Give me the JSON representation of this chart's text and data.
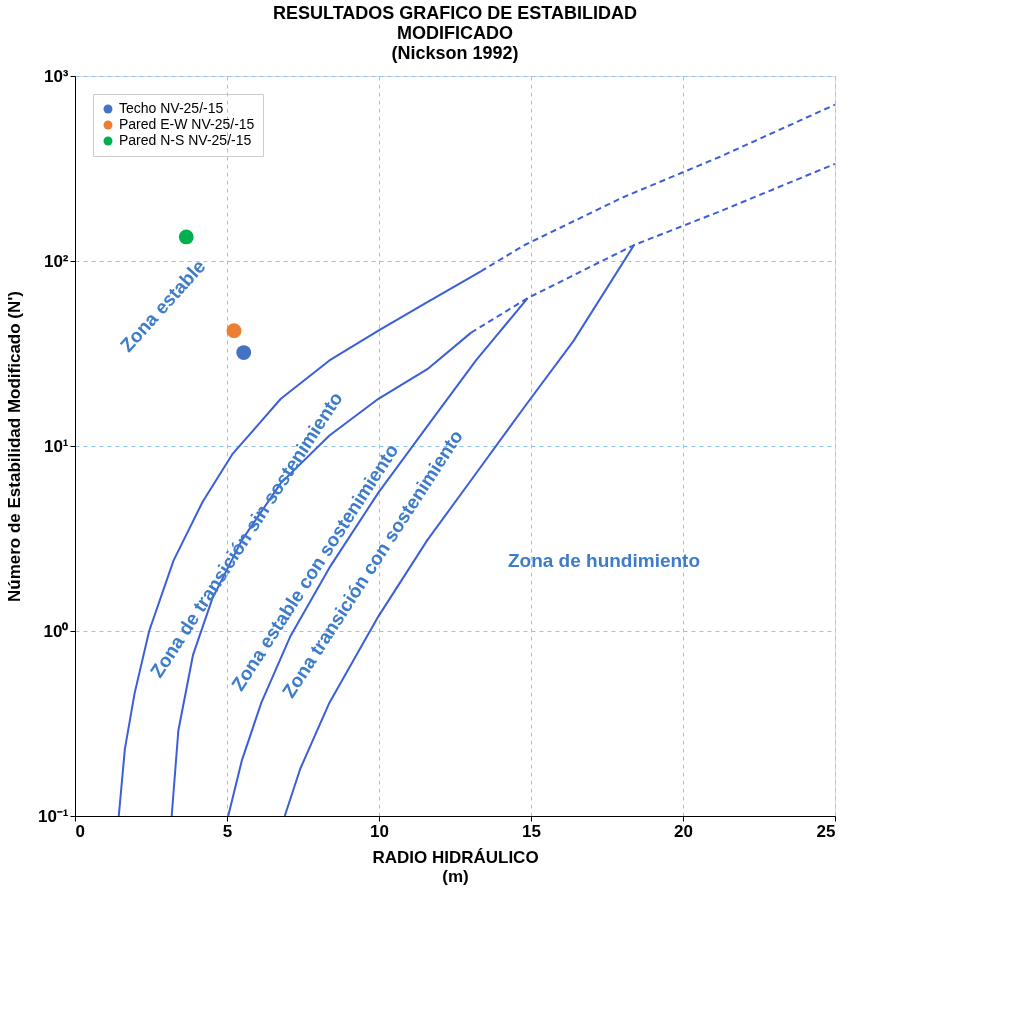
{
  "chart_data": {
    "type": "line",
    "title": "RESULTADOS GRAFICO DE ESTABILIDAD\nMODIFICADO\n(Nickson 1992)",
    "xlabel": "RADIO HIDRÁULICO\n(m)",
    "ylabel": "Número de Estabilidad Modificado (N')",
    "xlim": [
      0,
      25
    ],
    "xticks": [
      0,
      5,
      10,
      15,
      20,
      25
    ],
    "ylim": [
      0.1,
      1000
    ],
    "yticks": [
      {
        "value": 0.1,
        "label": "10⁻¹"
      },
      {
        "value": 1,
        "label": "10⁰"
      },
      {
        "value": 10,
        "label": "10¹"
      },
      {
        "value": 100,
        "label": "10²"
      },
      {
        "value": 1000,
        "label": "10³"
      }
    ],
    "log": "y",
    "grid": true,
    "legend": "top left",
    "series": [
      {
        "type": "scatter",
        "name": "Techo NV-25/-15",
        "color": "#4472c4",
        "marker": "circle",
        "x": [
          5.55
        ],
        "values": [
          32
        ]
      },
      {
        "type": "scatter",
        "name": "Pared E-W NV-25/-15",
        "color": "#ed7d31",
        "marker": "circle",
        "x": [
          5.23
        ],
        "values": [
          42
        ]
      },
      {
        "type": "scatter",
        "name": "Pared N-S NV-25/-15",
        "color": "#00b050",
        "marker": "circle",
        "x": [
          3.66
        ],
        "values": [
          135
        ]
      },
      {
        "color": "#3a5fd9",
        "line_style": "solid",
        "x": [
          1.44,
          1.64,
          1.96,
          2.44,
          3.24,
          4.2,
          5.17,
          6.77,
          8.37,
          9.98,
          11.59,
          13.35
        ],
        "values": [
          0.1,
          0.23,
          0.46,
          1.0,
          2.4,
          5.0,
          9,
          18,
          29,
          42,
          60,
          88
        ]
      },
      {
        "color": "#3a5fd9",
        "line_style": "dashed",
        "x": [
          13.35,
          14.79,
          18.0,
          21.2,
          25
        ],
        "values": [
          88,
          122,
          220,
          365,
          700
        ]
      },
      {
        "color": "#3a5fd9",
        "line_style": "solid",
        "x": [
          3.18,
          3.4,
          3.88,
          4.52,
          5.49,
          6.77,
          8.37,
          9.98,
          11.59,
          13.03
        ],
        "values": [
          0.1,
          0.29,
          0.74,
          1.5,
          3.1,
          6.3,
          11.4,
          18,
          26,
          41
        ]
      },
      {
        "color": "#3a5fd9",
        "line_style": "dashed",
        "x": [
          13.03,
          14.89,
          18.39,
          21.2,
          25
        ],
        "values": [
          41,
          63,
          122,
          185,
          335
        ]
      },
      {
        "color": "#3a5fd9",
        "line_style": "solid",
        "x": [
          5.04,
          5.49,
          6.13,
          7.09,
          8.37,
          9.98,
          11.59,
          13.19,
          14.89
        ],
        "values": [
          0.1,
          0.2,
          0.41,
          0.94,
          2.2,
          5.6,
          12.8,
          29,
          63
        ]
      },
      {
        "color": "#3a5fd9",
        "line_style": "solid",
        "x": [
          6.9,
          7.41,
          8.37,
          9.98,
          11.59,
          13.19,
          14.79,
          16.4,
          18.39
        ],
        "values": [
          0.1,
          0.18,
          0.41,
          1.2,
          3.1,
          7.1,
          16.3,
          37,
          122
        ]
      }
    ],
    "annotations": [
      "Zona estable",
      "Zona de transición sin sostenimiento",
      "Zona  estable con sostenimiento",
      "Zona  transición con sostenimiento",
      "Zona de hundimiento"
    ]
  }
}
